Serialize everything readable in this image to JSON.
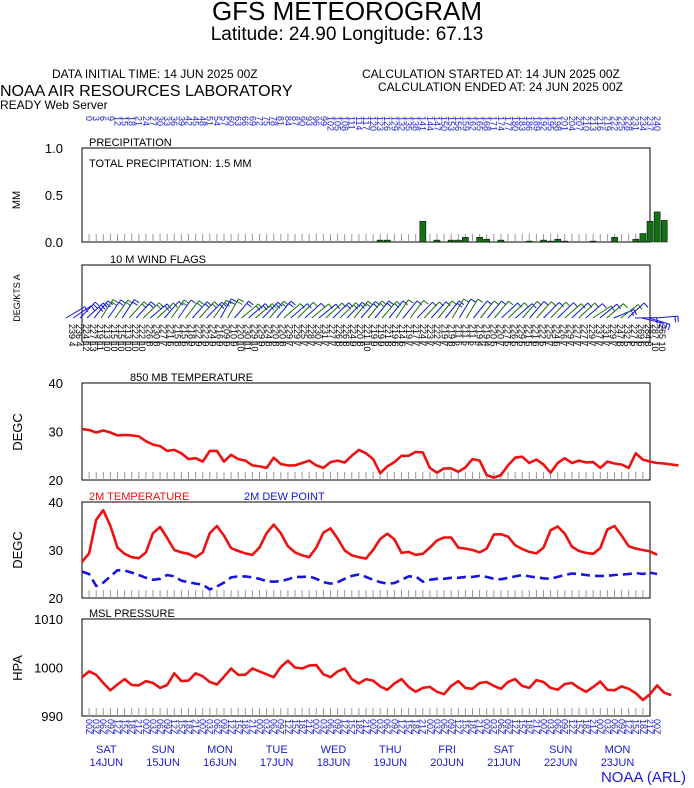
{
  "header": {
    "title": "GFS METEOROGRAM",
    "subtitle": "Latitude: 24.90 Longitude:  67.13",
    "init_time": "DATA INITIAL TIME: 14 JUN 2025 00Z",
    "calc_started": "CALCULATION STARTED AT: 14 JUN 2025 00Z",
    "calc_ended": "CALCULATION ENDED AT: 24 JUN 2025 00Z",
    "lab": "NOAA AIR RESOURCES LABORATORY",
    "server": "READY Web Server",
    "credit": "NOAA (ARL)"
  },
  "colors": {
    "temp": "#ee1111",
    "dew": "#1515dd",
    "bar": "#157015",
    "label_blue": "#1a1ad0",
    "grid": "#999999"
  },
  "chart_data": [
    {
      "type": "bar",
      "panel": "precipitation",
      "title": "PRECIPITATION",
      "annotation": "TOTAL PRECIPITATION:   1.5 MM",
      "ylabel": "MM",
      "ylim": [
        0,
        1
      ],
      "yticks": [
        "0.0",
        "0.5",
        "1.0"
      ],
      "hour_labels": [
        "0",
        "3",
        "6",
        "9",
        "12",
        "15",
        "18",
        "21",
        "24",
        "27",
        "30",
        "33",
        "36",
        "39",
        "42",
        "45",
        "48",
        "51",
        "54",
        "57",
        "60",
        "63",
        "66",
        "69",
        "72",
        "75",
        "78",
        "81",
        "84",
        "87",
        "90",
        "93",
        "96",
        "99",
        "102",
        "105",
        "108",
        "111",
        "114",
        "117",
        "120",
        "123",
        "126",
        "129",
        "132",
        "135",
        "138",
        "141",
        "144",
        "147",
        "150",
        "153",
        "156",
        "159",
        "162",
        "165",
        "168",
        "171",
        "174",
        "177",
        "180",
        "183",
        "186",
        "189",
        "192",
        "195",
        "198",
        "201",
        "204",
        "207",
        "210",
        "213",
        "216",
        "219",
        "222",
        "225",
        "228",
        "231",
        "234",
        "237",
        "240"
      ],
      "values": [
        0,
        0,
        0,
        0,
        0,
        0,
        0,
        0,
        0,
        0,
        0,
        0,
        0,
        0,
        0,
        0,
        0,
        0,
        0,
        0,
        0,
        0,
        0,
        0,
        0,
        0,
        0,
        0,
        0,
        0,
        0,
        0,
        0,
        0,
        0,
        0,
        0,
        0,
        0,
        0,
        0,
        0,
        0.02,
        0.02,
        0,
        0,
        0,
        0,
        0.22,
        0,
        0.02,
        0,
        0.02,
        0.02,
        0.05,
        0,
        0.05,
        0.03,
        0,
        0.02,
        0,
        0,
        0,
        0.01,
        0,
        0.02,
        0.01,
        0.03,
        0.01,
        0,
        0,
        0,
        0.01,
        0,
        0,
        0.05,
        0,
        0,
        0.03,
        0.09,
        0.22,
        0.32,
        0.23
      ]
    },
    {
      "type": "line",
      "panel": "wind",
      "title": "10 M  WIND FLAGS",
      "ylabel": "DEG/KTS  A",
      "direction_deg": [
        239,
        236,
        224,
        227,
        219,
        213,
        215,
        215,
        213,
        222,
        222,
        226,
        230,
        227,
        221,
        215,
        215,
        218,
        222,
        222,
        224,
        216,
        209,
        210,
        220,
        230,
        229,
        229,
        224,
        220,
        220,
        229,
        229,
        225,
        228,
        230,
        231,
        227,
        226,
        226,
        224,
        220,
        221,
        219,
        219,
        221,
        219,
        214,
        219,
        217,
        224,
        223,
        222,
        219,
        219,
        211,
        211,
        211,
        219,
        219,
        220,
        220,
        227,
        226,
        229,
        221,
        221,
        222,
        225,
        224,
        226,
        229,
        227,
        227,
        229,
        237,
        231,
        229,
        247,
        232,
        227,
        269,
        284,
        287,
        265
      ],
      "speed_kts": [
        4,
        4,
        12,
        13,
        11,
        10,
        10,
        10,
        10,
        10,
        10,
        8,
        8,
        7,
        6,
        8,
        6,
        9,
        9,
        9,
        9,
        9,
        9,
        9,
        10,
        11,
        10,
        9,
        8,
        8,
        8,
        7,
        7,
        7,
        7,
        7,
        7,
        7,
        8,
        8,
        9,
        8,
        10,
        9,
        9,
        8,
        6,
        6,
        7,
        7,
        7,
        7,
        7,
        7,
        8,
        6,
        5,
        5,
        4,
        4,
        5,
        7,
        5,
        5,
        5,
        5,
        6,
        5,
        7,
        6,
        7,
        7,
        7,
        7,
        7,
        7,
        7,
        7,
        8,
        5,
        5,
        6,
        8,
        10,
        10
      ]
    },
    {
      "type": "line",
      "panel": "850mb",
      "title": "850 MB  TEMPERATURE",
      "ylabel": "DEGC",
      "ylim": [
        20,
        40
      ],
      "yticks": [
        "20",
        "30",
        "40"
      ],
      "series": [
        {
          "values": [
            30.5,
            30.3,
            29.8,
            30.2,
            29.8,
            29.2,
            29.3,
            29.2,
            29.0,
            28.0,
            27.3,
            27.0,
            26.0,
            26.2,
            25.5,
            24.3,
            24.5,
            23.8,
            26.0,
            26.0,
            23.8,
            25.2,
            24.3,
            24.0,
            23.0,
            22.8,
            22.5,
            24.6,
            23.3,
            23.0,
            23.0,
            23.5,
            24.0,
            23.0,
            22.5,
            23.7,
            24.0,
            23.6,
            25.0,
            26.2,
            25.5,
            24.3,
            21.4,
            22.8,
            23.7,
            25.0,
            25.0,
            25.8,
            25.7,
            22.5,
            21.5,
            22.4,
            22.4,
            21.7,
            22.6,
            24.3,
            24.0,
            21.0,
            20.5,
            21.0,
            23.0,
            24.6,
            24.8,
            23.5,
            24.2,
            23.2,
            21.5,
            23.5,
            24.5,
            23.5,
            24.0,
            23.6,
            23.7,
            22.5,
            23.8,
            23.4,
            23.2,
            22.5,
            25.5,
            24.2,
            23.8,
            23.5,
            23.4,
            23.2,
            23.0
          ]
        }
      ]
    },
    {
      "type": "line",
      "panel": "surface",
      "ylabel": "DEGC",
      "ylim": [
        20,
        40
      ],
      "yticks": [
        "20",
        "30",
        "40"
      ],
      "series": [
        {
          "name": "2M TEMPERATURE",
          "values": [
            27.5,
            29.3,
            36.3,
            38.3,
            35.0,
            30.5,
            29.2,
            28.5,
            28.3,
            29.5,
            33.5,
            34.8,
            32.5,
            30.0,
            29.5,
            29.2,
            28.5,
            29.5,
            33.5,
            35.0,
            33.0,
            30.4,
            29.8,
            29.3,
            29.0,
            30.5,
            33.5,
            35.3,
            33.5,
            30.8,
            29.5,
            28.9,
            28.5,
            30.5,
            33.6,
            34.5,
            32.4,
            29.9,
            28.9,
            28.5,
            28.2,
            30.0,
            32.3,
            33.4,
            32.2,
            29.4,
            29.6,
            29.0,
            29.2,
            30.5,
            32.0,
            32.6,
            32.6,
            30.5,
            30.3,
            30.0,
            29.5,
            30.3,
            33.2,
            33.3,
            32.8,
            31.0,
            30.2,
            29.6,
            29.3,
            30.5,
            34.1,
            34.9,
            33.4,
            30.7,
            29.8,
            29.4,
            29.2,
            30.4,
            34.3,
            35.0,
            33.0,
            30.8,
            30.3,
            30.0,
            29.7,
            29.0
          ]
        },
        {
          "name": "2M  DEW POINT",
          "values": [
            25.5,
            25.0,
            22.5,
            23.2,
            24.5,
            25.8,
            25.7,
            25.3,
            24.8,
            24.2,
            23.8,
            24.0,
            24.8,
            24.5,
            23.6,
            23.3,
            23.0,
            22.8,
            21.8,
            22.4,
            23.2,
            24.3,
            24.5,
            24.5,
            24.3,
            24.0,
            23.5,
            23.4,
            23.5,
            23.9,
            24.4,
            24.4,
            24.5,
            24.0,
            23.3,
            23.0,
            23.3,
            24.0,
            24.6,
            24.9,
            24.4,
            23.8,
            23.3,
            23.0,
            23.1,
            23.8,
            24.5,
            24.5,
            23.4,
            23.8,
            24.0,
            24.0,
            24.2,
            24.2,
            24.4,
            24.4,
            24.6,
            24.4,
            24.0,
            23.9,
            24.2,
            24.5,
            24.8,
            24.5,
            24.3,
            24.1,
            24.0,
            24.4,
            24.8,
            25.1,
            25.0,
            24.8,
            24.6,
            24.6,
            24.6,
            24.8,
            24.9,
            25.0,
            25.2,
            25.0,
            25.3,
            25.0
          ]
        }
      ]
    },
    {
      "type": "line",
      "panel": "pressure",
      "title": "MSL PRESSURE",
      "ylabel": "HPA",
      "ylim": [
        990,
        1010
      ],
      "yticks": [
        "990",
        "1000",
        "1010"
      ],
      "series": [
        {
          "values": [
            998.0,
            999.2,
            998.5,
            996.8,
            995.3,
            996.5,
            997.6,
            996.4,
            996.3,
            997.2,
            996.8,
            995.8,
            996.4,
            998.8,
            997.2,
            997.3,
            998.8,
            998.2,
            997.0,
            996.5,
            998.1,
            999.8,
            998.5,
            998.5,
            999.8,
            999.2,
            998.6,
            998.0,
            1000.1,
            1001.4,
            1000.0,
            999.8,
            1000.4,
            1000.5,
            998.6,
            998.0,
            999.2,
            999.8,
            997.6,
            996.7,
            997.6,
            997.3,
            996.1,
            995.4,
            996.7,
            997.6,
            996.0,
            995.0,
            995.8,
            996.0,
            995.0,
            994.5,
            996.2,
            997.2,
            995.8,
            995.6,
            996.8,
            997.0,
            996.2,
            995.6,
            997.0,
            997.6,
            996.2,
            995.8,
            997.4,
            997.0,
            995.8,
            995.4,
            996.6,
            996.8,
            995.8,
            995.0,
            996.0,
            997.1,
            995.4,
            995.3,
            996.1,
            995.6,
            994.7,
            993.3,
            994.5,
            996.3,
            994.8,
            994.3
          ]
        }
      ]
    }
  ],
  "day_axis": {
    "bottom_hour_labels": [
      "00",
      "03",
      "06",
      "09",
      "12",
      "15",
      "18",
      "21",
      "00",
      "03",
      "06",
      "09",
      "12",
      "15",
      "18",
      "21",
      "00",
      "03",
      "06",
      "09",
      "12",
      "15",
      "18",
      "21",
      "00",
      "03",
      "06",
      "09",
      "12",
      "15",
      "18",
      "21",
      "00",
      "03",
      "06",
      "09",
      "12",
      "15",
      "18",
      "21",
      "00",
      "03",
      "06",
      "09",
      "12",
      "15",
      "18",
      "21",
      "00",
      "03",
      "06",
      "09",
      "12",
      "15",
      "18",
      "21",
      "00",
      "03",
      "06",
      "09",
      "12",
      "15",
      "18",
      "21",
      "00",
      "03",
      "06",
      "09",
      "12",
      "15",
      "18",
      "21",
      "00",
      "03",
      "06",
      "09",
      "12",
      "15",
      "18",
      "21",
      "00"
    ],
    "days": [
      {
        "dow": "SAT",
        "date": "14JUN"
      },
      {
        "dow": "SUN",
        "date": "15JUN"
      },
      {
        "dow": "MON",
        "date": "16JUN"
      },
      {
        "dow": "TUE",
        "date": "17JUN"
      },
      {
        "dow": "WED",
        "date": "18JUN"
      },
      {
        "dow": "THU",
        "date": "19JUN"
      },
      {
        "dow": "FRI",
        "date": "20JUN"
      },
      {
        "dow": "SAT",
        "date": "21JUN"
      },
      {
        "dow": "SUN",
        "date": "22JUN"
      },
      {
        "dow": "MON",
        "date": "23JUN"
      }
    ]
  }
}
